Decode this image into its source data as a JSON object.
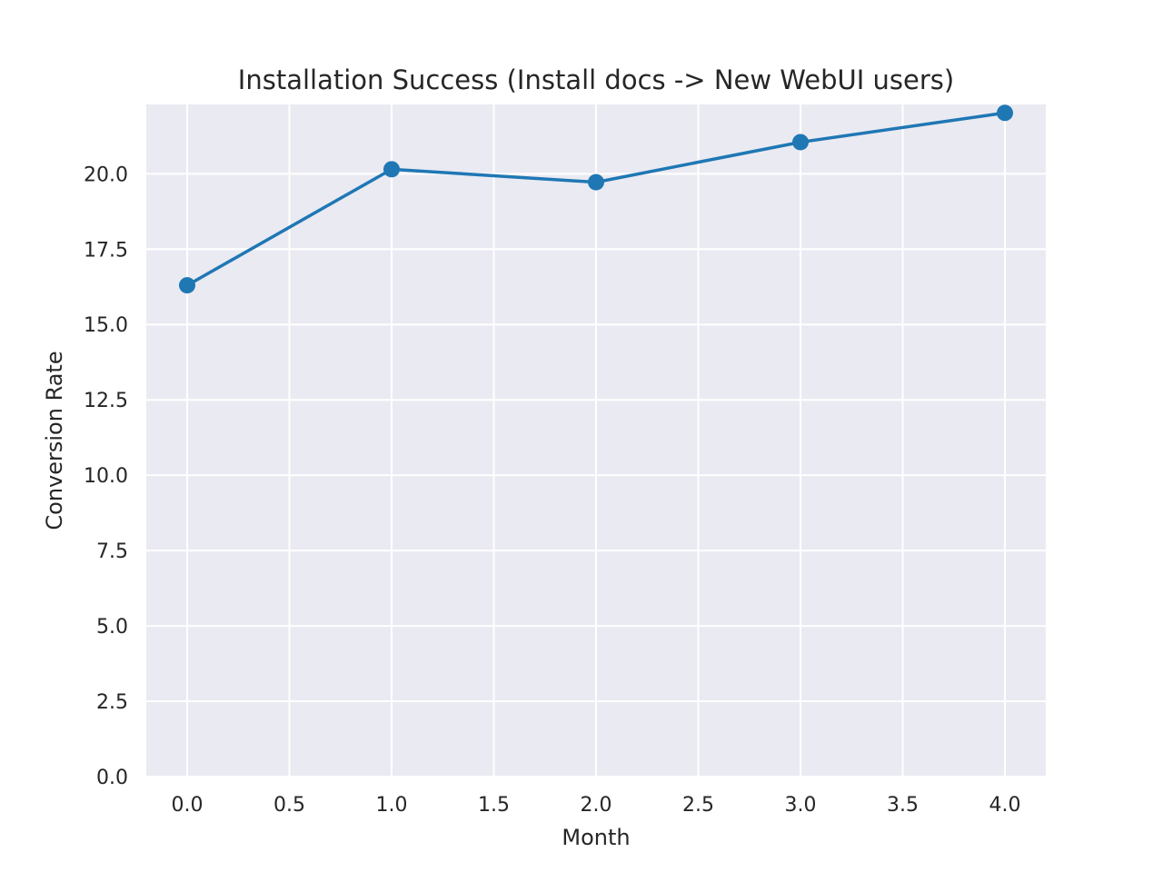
{
  "chart_data": {
    "type": "line",
    "title": "Installation Success (Install docs -> New WebUI users)",
    "xlabel": "Month",
    "ylabel": "Conversion Rate",
    "x": [
      0,
      1,
      2,
      3,
      4
    ],
    "series": [
      {
        "values": [
          16.3,
          20.15,
          19.72,
          21.05,
          22.02
        ]
      }
    ],
    "xlim": [
      -0.2,
      4.2
    ],
    "ylim": [
      0,
      22.3
    ],
    "xticks": [
      "0.0",
      "0.5",
      "1.0",
      "1.5",
      "2.0",
      "2.5",
      "3.0",
      "3.5",
      "4.0"
    ],
    "yticks": [
      "0.0",
      "2.5",
      "5.0",
      "7.5",
      "10.0",
      "12.5",
      "15.0",
      "17.5",
      "20.0"
    ],
    "grid": true,
    "colors": {
      "line": "#1f77b4",
      "plot_background": "#eaeaf2",
      "grid": "#ffffff"
    },
    "markers": "circle"
  }
}
